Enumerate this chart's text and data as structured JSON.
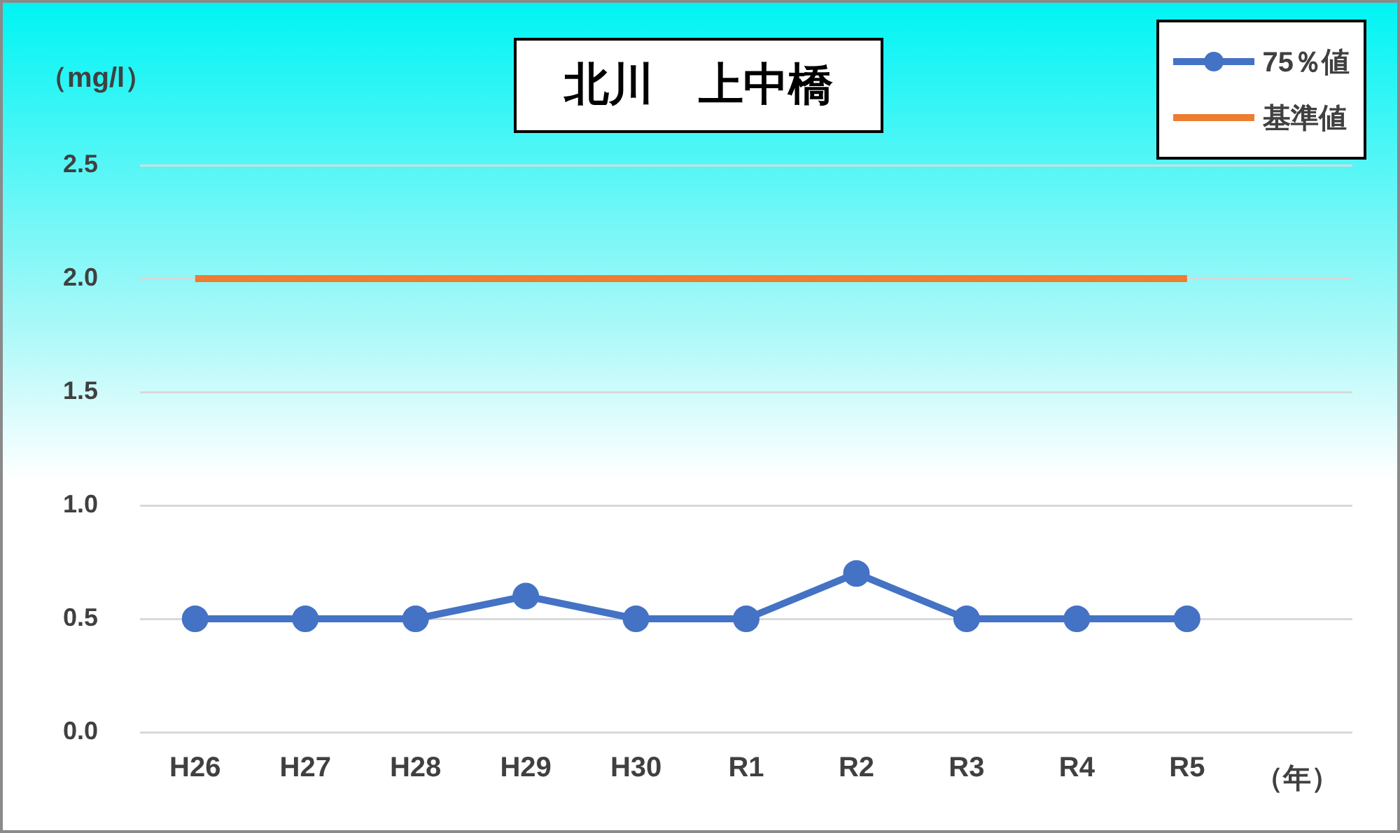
{
  "chart_data": {
    "type": "line",
    "title": "北川　上中橋",
    "ylabel": "（mg/l）",
    "xlabel": "（年）",
    "categories": [
      "H26",
      "H27",
      "H28",
      "H29",
      "H30",
      "R1",
      "R2",
      "R3",
      "R4",
      "R5"
    ],
    "series": [
      {
        "name": "75％値",
        "color": "#4472c4",
        "marker": "circle",
        "values": [
          0.5,
          0.5,
          0.5,
          0.6,
          0.5,
          0.5,
          0.7,
          0.5,
          0.5,
          0.5
        ]
      },
      {
        "name": "基準値",
        "color": "#ed7d31",
        "marker": "none",
        "values": [
          2.0,
          2.0,
          2.0,
          2.0,
          2.0,
          2.0,
          2.0,
          2.0,
          2.0,
          2.0
        ]
      }
    ],
    "ylim": [
      0,
      2.5
    ],
    "yticks": [
      {
        "value": 0,
        "label": "0.0"
      },
      {
        "value": 0.5,
        "label": "0.5"
      },
      {
        "value": 1,
        "label": "1.0"
      },
      {
        "value": 1.5,
        "label": "1.5"
      },
      {
        "value": 2,
        "label": "2.0"
      },
      {
        "value": 2.5,
        "label": "2.5"
      }
    ],
    "grid": "y",
    "legend": "top right"
  }
}
